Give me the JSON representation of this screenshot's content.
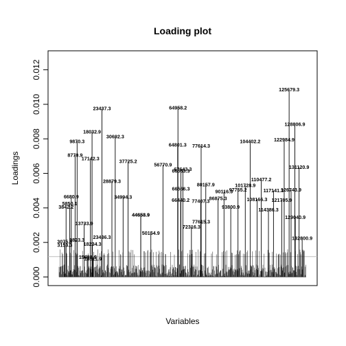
{
  "chart_data": {
    "type": "bar",
    "title": "Loading plot",
    "xlabel": "Variables",
    "ylabel": "Loadings",
    "ylim": [
      -0.0005,
      0.0131
    ],
    "yticks": [
      "0.000",
      "0.002",
      "0.004",
      "0.006",
      "0.008",
      "0.010",
      "0.012"
    ],
    "ytick_values": [
      0,
      0.002,
      0.004,
      0.006,
      0.008,
      0.01,
      0.012
    ],
    "threshold": 0.00118,
    "threshold_color": "#bebebe",
    "variable_range": [
      0,
      135000
    ],
    "peaks": [
      {
        "label": "3075.9",
        "x": 3076,
        "value": 0.00205
      },
      {
        "label": "3153.3",
        "x": 3153,
        "value": 0.00185
      },
      {
        "label": "3842.2",
        "x": 3842,
        "value": 0.00405
      },
      {
        "label": "5850.1",
        "x": 5850,
        "value": 0.00425
      },
      {
        "label": "6680.9",
        "x": 6681,
        "value": 0.00465
      },
      {
        "label": "8770.9",
        "x": 8771,
        "value": 0.00705
      },
      {
        "label": "9870.3",
        "x": 9870,
        "value": 0.00785
      },
      {
        "label": "9823.3",
        "x": 9823,
        "value": 0.00215
      },
      {
        "label": "13733.9",
        "x": 13734,
        "value": 0.0031
      },
      {
        "label": "15681.9",
        "x": 15682,
        "value": 0.00115
      },
      {
        "label": "17142.3",
        "x": 17142,
        "value": 0.00685
      },
      {
        "label": "18032.9",
        "x": 18032,
        "value": 0.0084
      },
      {
        "label": "18234.3",
        "x": 18234,
        "value": 0.0019
      },
      {
        "label": "18511.9",
        "x": 18511,
        "value": 0.00105
      },
      {
        "label": "23437.3",
        "x": 23437,
        "value": 0.00975
      },
      {
        "label": "23436.3",
        "x": 23436,
        "value": 0.0023
      },
      {
        "label": "28879.3",
        "x": 28879,
        "value": 0.00555
      },
      {
        "label": "30692.3",
        "x": 30692,
        "value": 0.00812
      },
      {
        "label": "34994.3",
        "x": 34994,
        "value": 0.00462
      },
      {
        "label": "37725.2",
        "x": 37725,
        "value": 0.0067
      },
      {
        "label": "44653.9",
        "x": 44653,
        "value": 0.0036
      },
      {
        "label": "44658.9",
        "x": 44658,
        "value": 0.0036
      },
      {
        "label": "50154.9",
        "x": 50154,
        "value": 0.00255
      },
      {
        "label": "56770.9",
        "x": 56770,
        "value": 0.0065
      },
      {
        "label": "64958.2",
        "x": 64958,
        "value": 0.0098
      },
      {
        "label": "64801.3",
        "x": 64801,
        "value": 0.00765
      },
      {
        "label": "66563.3",
        "x": 66563,
        "value": 0.00615
      },
      {
        "label": "66566.3",
        "x": 66566,
        "value": 0.0051
      },
      {
        "label": "66440.2",
        "x": 66440,
        "value": 0.00445
      },
      {
        "label": "67643.3",
        "x": 67643,
        "value": 0.00625
      },
      {
        "label": "72316.3",
        "x": 72316,
        "value": 0.0029
      },
      {
        "label": "77614.3",
        "x": 77614,
        "value": 0.0076
      },
      {
        "label": "77407.3",
        "x": 77407,
        "value": 0.0044
      },
      {
        "label": "77615.3",
        "x": 77615,
        "value": 0.0032
      },
      {
        "label": "80157.9",
        "x": 80157,
        "value": 0.00535
      },
      {
        "label": "86875.3",
        "x": 86875,
        "value": 0.00455
      },
      {
        "label": "90116.3",
        "x": 90116,
        "value": 0.00495
      },
      {
        "label": "93800.9",
        "x": 93800,
        "value": 0.00405
      },
      {
        "label": "97755.2",
        "x": 97755,
        "value": 0.00505
      },
      {
        "label": "101728.9",
        "x": 101728,
        "value": 0.0053
      },
      {
        "label": "104402.2",
        "x": 104402,
        "value": 0.00785
      },
      {
        "label": "108166.3",
        "x": 108166,
        "value": 0.0045
      },
      {
        "label": "110477.2",
        "x": 110477,
        "value": 0.00565
      },
      {
        "label": "114386.3",
        "x": 114386,
        "value": 0.0039
      },
      {
        "label": "117141.3",
        "x": 117141,
        "value": 0.005
      },
      {
        "label": "121705.9",
        "x": 121705,
        "value": 0.00445
      },
      {
        "label": "122984.9",
        "x": 122984,
        "value": 0.00795
      },
      {
        "label": "125679.3",
        "x": 125679,
        "value": 0.01085
      },
      {
        "label": "126743.9",
        "x": 126743,
        "value": 0.00505
      },
      {
        "label": "128806.9",
        "x": 128806,
        "value": 0.00885
      },
      {
        "label": "129040.9",
        "x": 129040,
        "value": 0.00345
      },
      {
        "label": "131120.9",
        "x": 131120,
        "value": 0.00635
      },
      {
        "label": "132800.9",
        "x": 132800,
        "value": 0.00225
      }
    ]
  }
}
